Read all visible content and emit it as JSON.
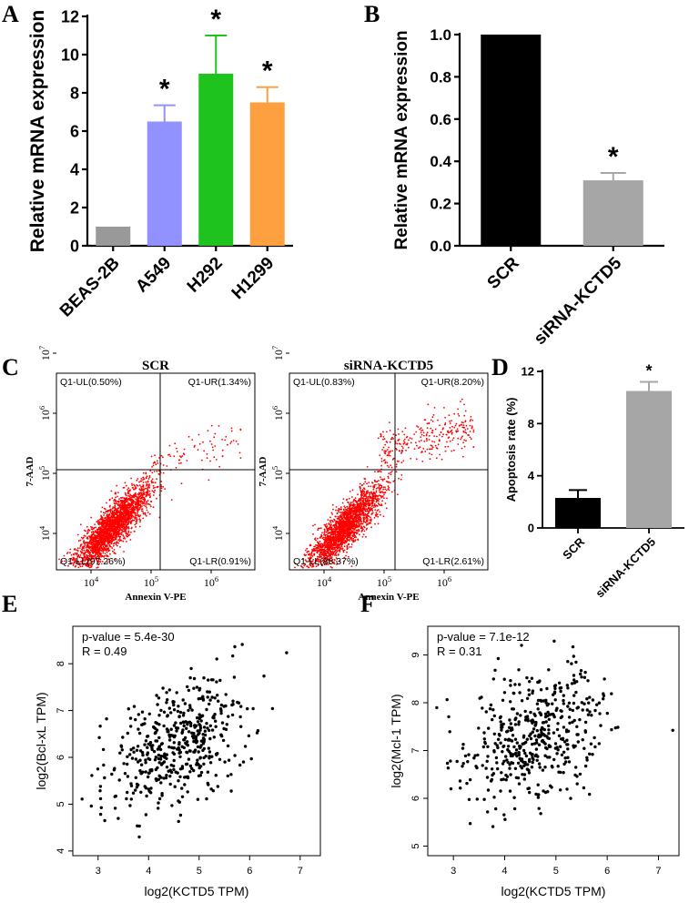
{
  "panel_letters": {
    "A": "A",
    "B": "B",
    "C": "C",
    "D": "D",
    "E": "E",
    "F": "F"
  },
  "colors": {
    "beas": "#999999",
    "a549": "#9191ff",
    "h292": "#1ec31e",
    "h1299": "#ffa040",
    "scr": "#000000",
    "sirna": "#a6a6a6",
    "dots_flow": "#ff0000",
    "dots_scatter": "#000000"
  },
  "chart_data": [
    {
      "panel": "A",
      "type": "bar",
      "categories": [
        "BEAS-2B",
        "A549",
        "H292",
        "H1299"
      ],
      "values": [
        1.0,
        6.5,
        9.0,
        7.5
      ],
      "errors": [
        0,
        0.85,
        2.0,
        0.8
      ],
      "significance": [
        "",
        "*",
        "*",
        "*"
      ],
      "ylabel": "Relative mRNA expression",
      "ylim": [
        0,
        12
      ],
      "yticks": [
        "0",
        "2",
        "4",
        "6",
        "8",
        "10",
        "12"
      ],
      "grid": false
    },
    {
      "panel": "B",
      "type": "bar",
      "categories": [
        "SCR",
        "siRNA-KCTD5"
      ],
      "values": [
        1.0,
        0.31
      ],
      "errors": [
        0,
        0.035
      ],
      "significance": [
        "",
        "*"
      ],
      "ylabel": "Relative mRNA expression",
      "ylim": [
        0,
        1.0
      ],
      "yticks": [
        "0.0",
        "0.2",
        "0.4",
        "0.6",
        "0.8",
        "1.0"
      ],
      "grid": false
    },
    {
      "panel": "C",
      "type": "scatter",
      "plots": [
        {
          "title": "SCR",
          "quadrants": {
            "UL": "Q1-UL(0.50%)",
            "UR": "Q1-UR(1.34%)",
            "LL": "Q1-LL(97.26%)",
            "LR": "Q1-LR(0.91%)"
          }
        },
        {
          "title": "siRNA-KCTD5",
          "quadrants": {
            "UL": "Q1-UL(0.83%)",
            "UR": "Q1-UR(8.20%)",
            "LL": "Q1-LL(88.37%)",
            "LR": "Q1-LR(2.61%)"
          }
        }
      ],
      "xlabel": "Annexin V-PE",
      "ylabel": "7-AAD",
      "xticks": [
        "10^4",
        "10^5",
        "10^6"
      ],
      "yticks": [
        "10^4",
        "10^5",
        "10^6",
        "10^7"
      ],
      "scale": "log"
    },
    {
      "panel": "D",
      "type": "bar",
      "categories": [
        "SCR",
        "siRNA-KCTD5"
      ],
      "values": [
        2.3,
        10.5
      ],
      "errors": [
        0.6,
        0.7
      ],
      "significance": [
        "",
        "*"
      ],
      "ylabel": "Apoptosis rate (%)",
      "ylim": [
        0,
        12
      ],
      "yticks": [
        "0",
        "4",
        "8",
        "12"
      ],
      "grid": false
    },
    {
      "panel": "E",
      "type": "scatter",
      "annotation": [
        "p-value = 5.4e-30",
        "R = 0.49"
      ],
      "xlabel": "log2(KCTD5 TPM)",
      "ylabel": "log2(Bcl-xL TPM)",
      "xlim": [
        2.5,
        7.4
      ],
      "ylim": [
        3.9,
        8.8
      ],
      "xticks": [
        "3",
        "4",
        "5",
        "6",
        "7"
      ],
      "yticks": [
        "4",
        "5",
        "6",
        "7",
        "8"
      ],
      "correlation_r": 0.49
    },
    {
      "panel": "F",
      "type": "scatter",
      "annotation": [
        "p-value = 7.1e-12",
        "R = 0.31"
      ],
      "xlabel": "log2(KCTD5 TPM)",
      "ylabel": "log2(Mcl-1 TPM)",
      "xlim": [
        2.5,
        7.4
      ],
      "ylim": [
        4.8,
        9.6
      ],
      "xticks": [
        "3",
        "4",
        "5",
        "6",
        "7"
      ],
      "yticks": [
        "5",
        "6",
        "7",
        "8",
        "9"
      ],
      "correlation_r": 0.31
    }
  ]
}
